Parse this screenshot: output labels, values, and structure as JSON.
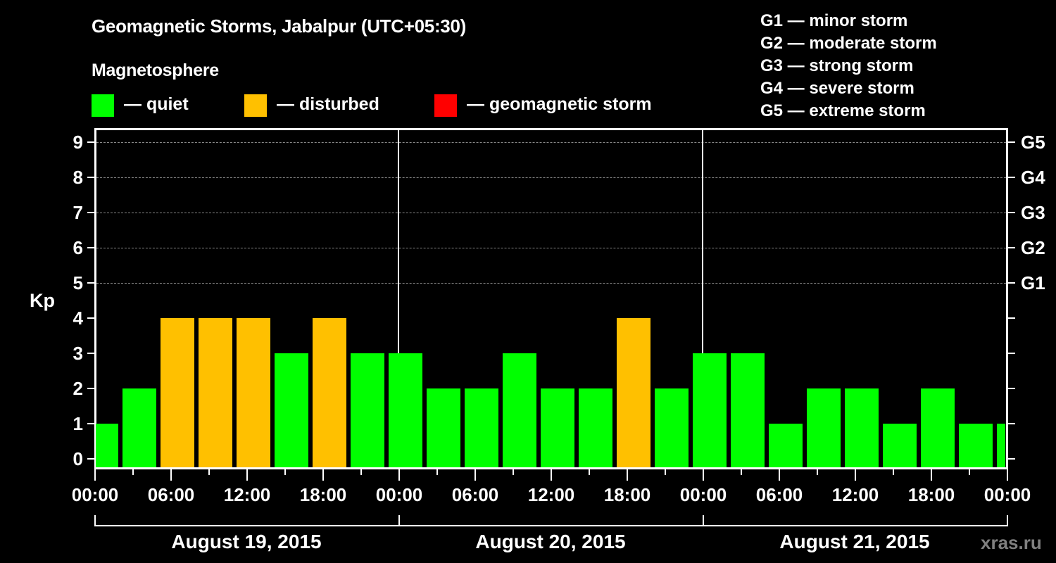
{
  "header": {
    "title": "Geomagnetic Storms, Jabalpur (UTC+05:30)",
    "subtitle": "Magnetosphere"
  },
  "legend": {
    "items": [
      {
        "label": "— quiet",
        "color": "#00ff00"
      },
      {
        "label": "— disturbed",
        "color": "#ffc000"
      },
      {
        "label": "— geomagnetic storm",
        "color": "#ff0000"
      }
    ]
  },
  "storm_scale": {
    "items": [
      "G1 — minor storm",
      "G2 — moderate storm",
      "G3 — strong storm",
      "G4 — severe storm",
      "G5 — extreme storm"
    ]
  },
  "axes": {
    "ylabel": "Kp",
    "yticks": [
      "0",
      "1",
      "2",
      "3",
      "4",
      "5",
      "6",
      "7",
      "8",
      "9"
    ],
    "gticks": [
      "G1",
      "G2",
      "G3",
      "G4",
      "G5"
    ],
    "xticks": [
      "00:00",
      "06:00",
      "12:00",
      "18:00",
      "00:00",
      "06:00",
      "12:00",
      "18:00",
      "00:00",
      "06:00",
      "12:00",
      "18:00",
      "00:00"
    ],
    "dates": [
      "August 19, 2015",
      "August 20, 2015",
      "August 21, 2015"
    ]
  },
  "watermark": "xras.ru",
  "chart_data": {
    "type": "bar",
    "title": "Geomagnetic Storms, Jabalpur (UTC+05:30)",
    "subtitle": "Magnetosphere",
    "xlabel": "",
    "ylabel": "Kp",
    "ylim": [
      0,
      9
    ],
    "grid": true,
    "legend_position": "top",
    "categories": [
      "Aug 19 00:00-01:30",
      "Aug 19 01:30",
      "Aug 19 04:30",
      "Aug 19 07:30",
      "Aug 19 10:30",
      "Aug 19 13:30",
      "Aug 19 16:30",
      "Aug 19 19:30",
      "Aug 19 22:30",
      "Aug 20 01:30",
      "Aug 20 04:30",
      "Aug 20 07:30",
      "Aug 20 10:30",
      "Aug 20 13:30",
      "Aug 20 16:30",
      "Aug 20 19:30",
      "Aug 20 22:30",
      "Aug 21 01:30",
      "Aug 21 04:30",
      "Aug 21 07:30",
      "Aug 21 10:30",
      "Aug 21 13:30",
      "Aug 21 16:30",
      "Aug 21 19:30",
      "Aug 21 22:30-24:00"
    ],
    "values": [
      1,
      2,
      4,
      4,
      4,
      3,
      4,
      3,
      3,
      2,
      2,
      3,
      2,
      2,
      4,
      2,
      3,
      3,
      1,
      2,
      2,
      1,
      2,
      1,
      1
    ],
    "status": [
      "quiet",
      "quiet",
      "disturbed",
      "disturbed",
      "disturbed",
      "quiet",
      "disturbed",
      "quiet",
      "quiet",
      "quiet",
      "quiet",
      "quiet",
      "quiet",
      "quiet",
      "disturbed",
      "quiet",
      "quiet",
      "quiet",
      "quiet",
      "quiet",
      "quiet",
      "quiet",
      "quiet",
      "quiet",
      "quiet"
    ],
    "colors": {
      "quiet": "#00ff00",
      "disturbed": "#ffc000",
      "storm": "#ff0000"
    },
    "right_axis": {
      "G1": 5,
      "G2": 6,
      "G3": 7,
      "G4": 8,
      "G5": 9
    }
  }
}
